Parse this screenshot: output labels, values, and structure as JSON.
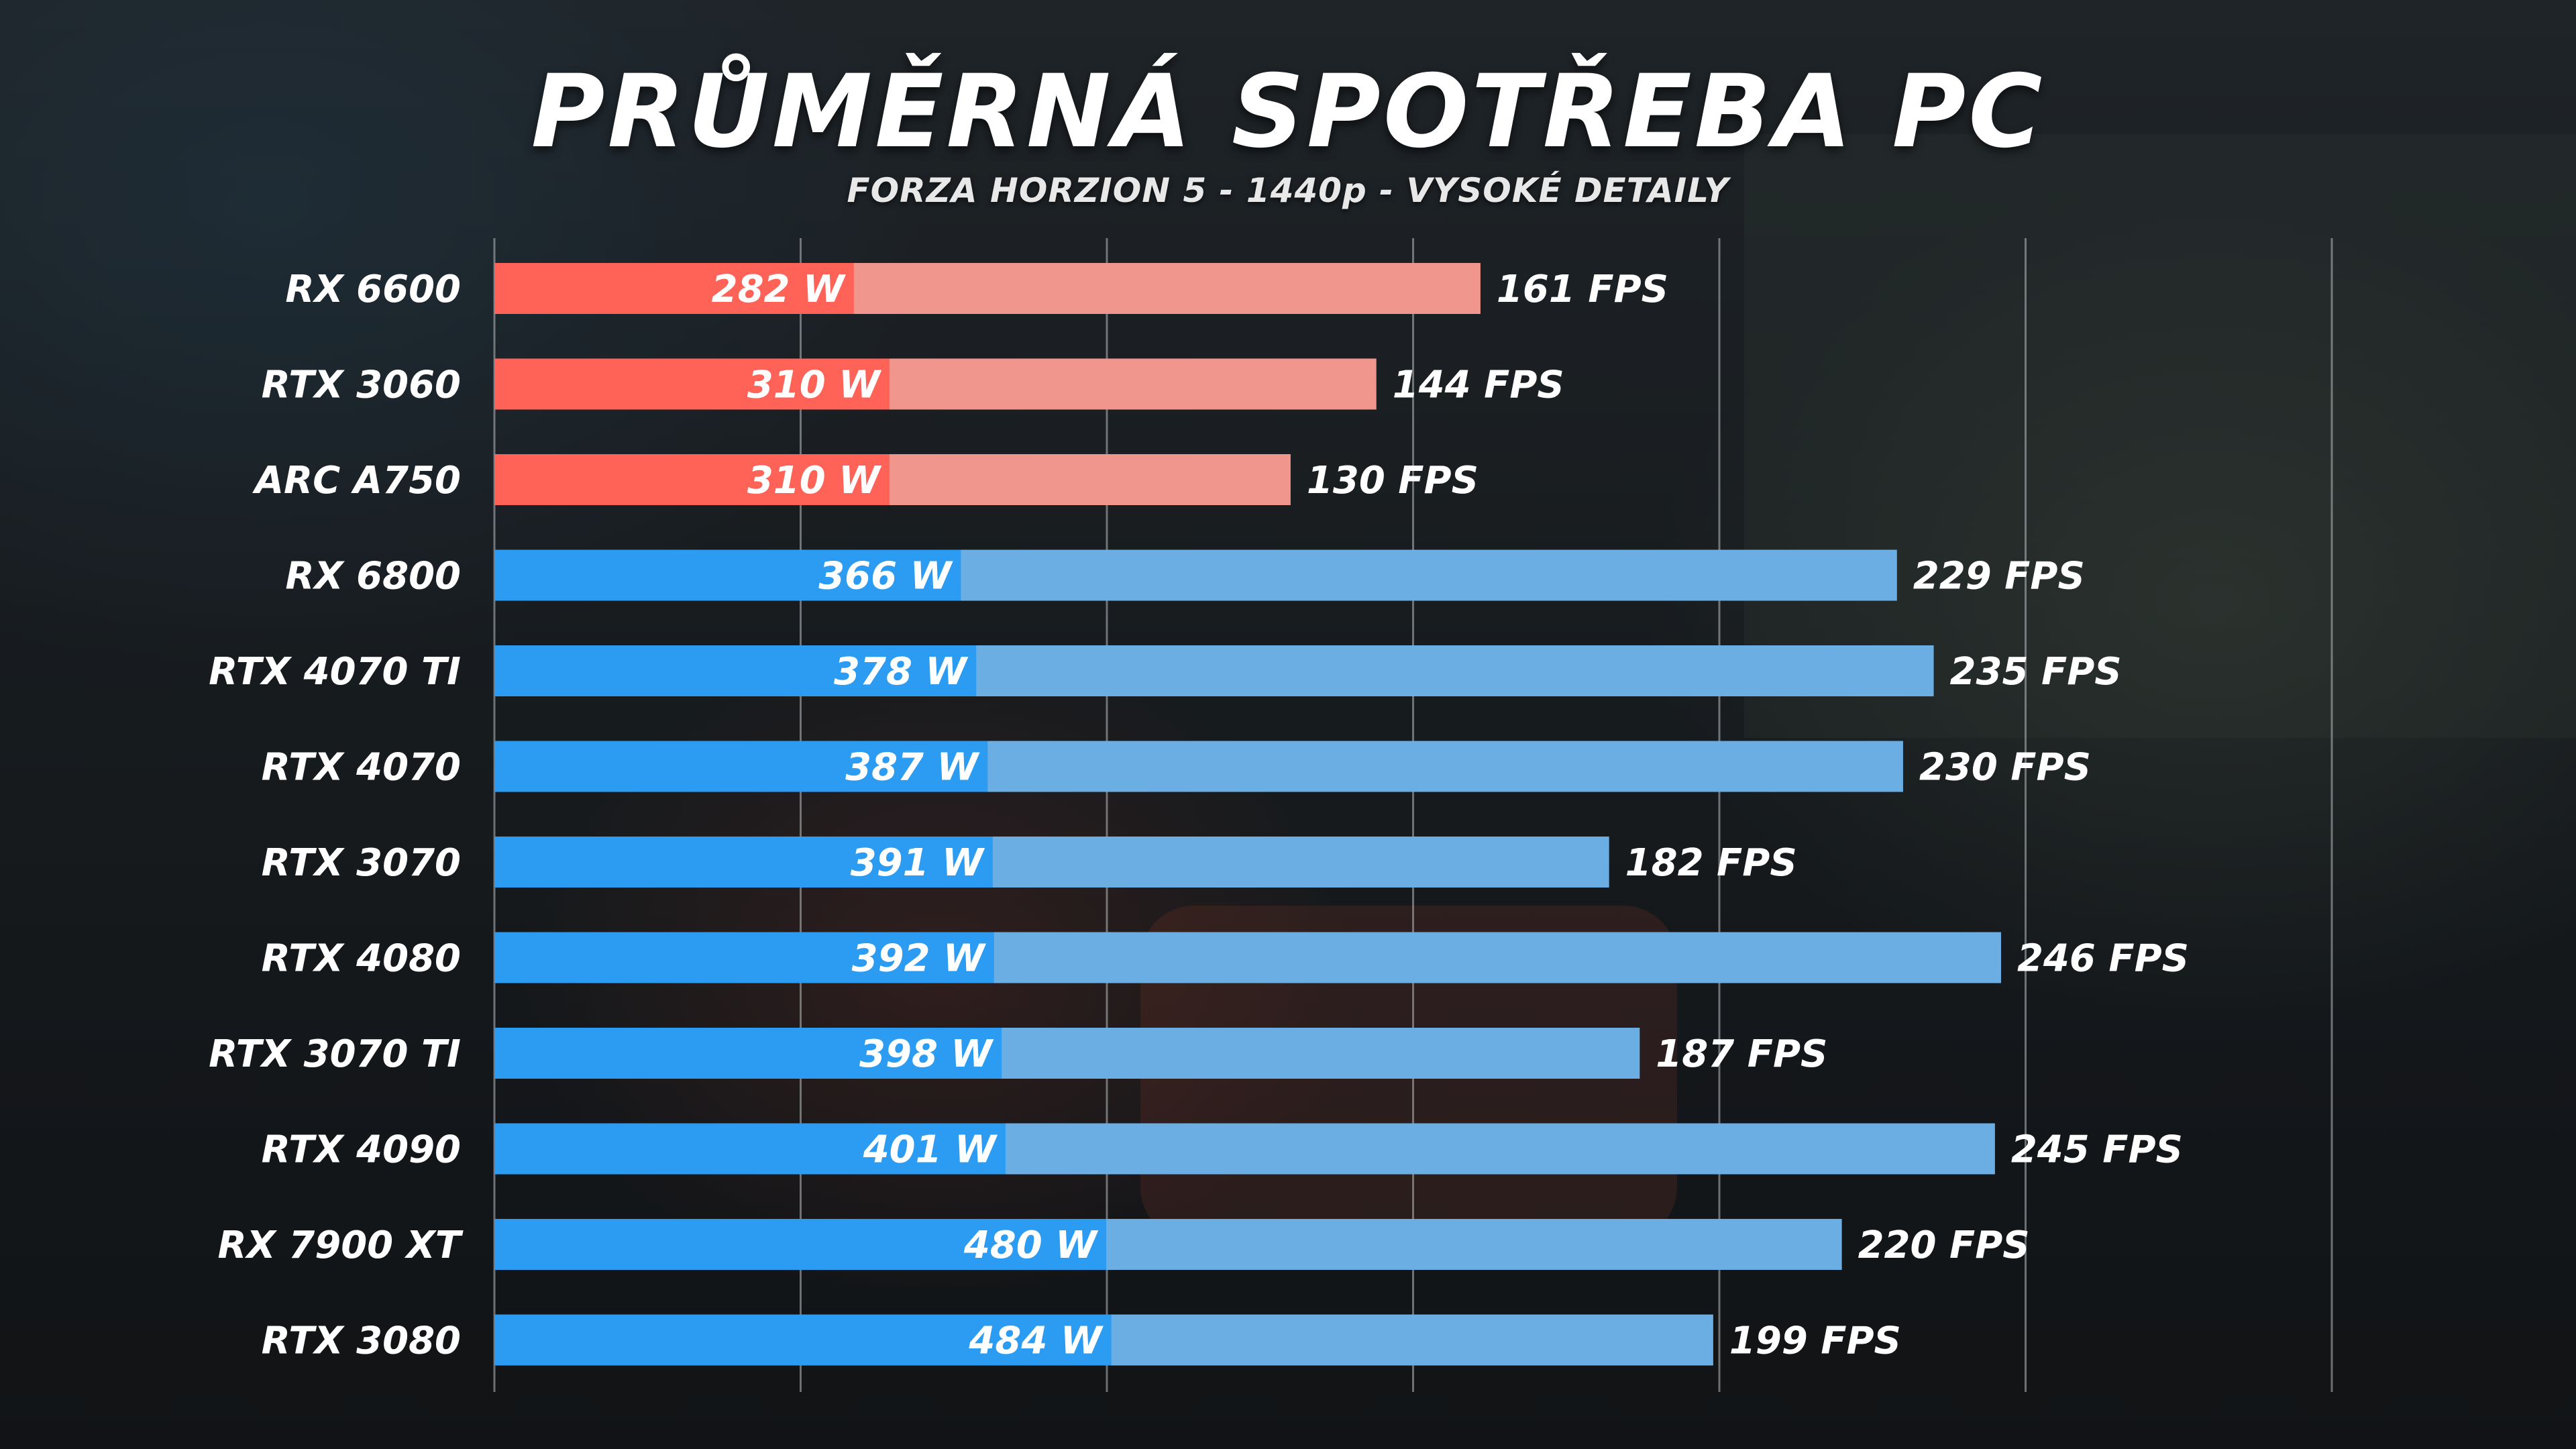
{
  "chart_data": {
    "type": "bar",
    "orientation": "horizontal",
    "title": "PRŮMĚRNÁ SPOTŘEBA PC",
    "subtitle": "FORZA HORZION 5 - 1440p - VYSOKÉ DETAILY",
    "value_unit_power": "W",
    "value_unit_fps": "FPS",
    "x_axis_fps_range": [
      0,
      300
    ],
    "gridlines": true,
    "categories": [
      "RX 6600",
      "RTX 3060",
      "ARC A750",
      "RX 6800",
      "RTX 4070 TI",
      "RTX 4070",
      "RTX 3070",
      "RTX 4080",
      "RTX 3070 TI",
      "RTX 4090",
      "RX 7900 XT",
      "RTX 3080"
    ],
    "power_w": [
      282,
      310,
      310,
      366,
      378,
      387,
      391,
      392,
      398,
      401,
      480,
      484
    ],
    "fps": [
      161,
      144,
      130,
      229,
      235,
      230,
      182,
      246,
      187,
      245,
      220,
      199
    ],
    "power_labels": [
      "282 W",
      "310 W",
      "310 W",
      "366 W",
      "378 W",
      "387 W",
      "391 W",
      "392 W",
      "398 W",
      "401 W",
      "480 W",
      "484 W"
    ],
    "fps_labels": [
      "161 FPS",
      "144 FPS",
      "130 FPS",
      "229 FPS",
      "235 FPS",
      "230 FPS",
      "182 FPS",
      "246 FPS",
      "187 FPS",
      "245 FPS",
      "220 FPS",
      "199 FPS"
    ],
    "group": [
      "red",
      "red",
      "red",
      "blue",
      "blue",
      "blue",
      "blue",
      "blue",
      "blue",
      "blue",
      "blue",
      "blue"
    ],
    "colors": {
      "red_strong": "#ff6257",
      "red_light": "#f0968c",
      "blue_strong": "#2b9cf2",
      "blue_light": "#6aaee3",
      "gridline": "#b8bcc0",
      "text": "#ffffff"
    }
  }
}
